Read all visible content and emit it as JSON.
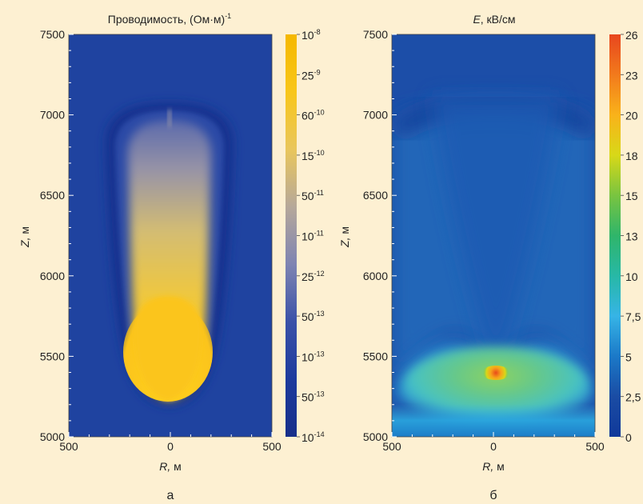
{
  "chart_data": [
    {
      "type": "heatmap",
      "panel_label": "а",
      "title": "Проводимость, (Ом·м)",
      "title_superscript": "-1",
      "xlabel_var": "R,",
      "xlabel_unit": " м",
      "ylabel_var": "Z,",
      "ylabel_unit": " м",
      "xlim": [
        -500,
        500
      ],
      "ylim": [
        5000,
        7500
      ],
      "x_ticks": [
        {
          "value": -500,
          "label": "500"
        },
        {
          "value": 0,
          "label": "0"
        },
        {
          "value": 500,
          "label": "500"
        }
      ],
      "y_ticks": [
        {
          "value": 7500,
          "label": "7500"
        },
        {
          "value": 7000,
          "label": "7000"
        },
        {
          "value": 6500,
          "label": "6500"
        },
        {
          "value": 6000,
          "label": "6000"
        },
        {
          "value": 5500,
          "label": "5500"
        },
        {
          "value": 5000,
          "label": "5000"
        }
      ],
      "colorbar": {
        "colors": [
          "#f5b800",
          "#f8c61a",
          "#e9c65c",
          "#b6a89a",
          "#7e84b2",
          "#3a52a8",
          "#1d3b9d",
          "#172f8a"
        ],
        "labels": [
          {
            "base": "10",
            "exp": "-8"
          },
          {
            "base": "25",
            "exp": "-9"
          },
          {
            "base": "60",
            "exp": "-10"
          },
          {
            "base": "15",
            "exp": "-10"
          },
          {
            "base": "50",
            "exp": "-11"
          },
          {
            "base": "10",
            "exp": "-11"
          },
          {
            "base": "25",
            "exp": "-12"
          },
          {
            "base": "50",
            "exp": "-13"
          },
          {
            "base": "10",
            "exp": "-13"
          },
          {
            "base": "50",
            "exp": "-13"
          },
          {
            "base": "10",
            "exp": "-14"
          }
        ]
      }
    },
    {
      "type": "heatmap",
      "panel_label": "б",
      "title_var": "E",
      "title": ", кВ/см",
      "xlabel_var": "R,",
      "xlabel_unit": " м",
      "ylabel_var": "Z,",
      "ylabel_unit": " м",
      "xlim": [
        -500,
        500
      ],
      "ylim": [
        5000,
        7500
      ],
      "x_ticks": [
        {
          "value": -500,
          "label": "500"
        },
        {
          "value": 0,
          "label": "0"
        },
        {
          "value": 500,
          "label": "500"
        }
      ],
      "y_ticks": [
        {
          "value": 7500,
          "label": "7500"
        },
        {
          "value": 7000,
          "label": "7000"
        },
        {
          "value": 6500,
          "label": "6500"
        },
        {
          "value": 6000,
          "label": "6000"
        },
        {
          "value": 5500,
          "label": "5500"
        },
        {
          "value": 5000,
          "label": "5000"
        }
      ],
      "colorbar": {
        "colors": [
          "#e8461e",
          "#f27a1c",
          "#f9b21a",
          "#d8d818",
          "#79c440",
          "#2fb56a",
          "#27b8a6",
          "#36b4e6",
          "#1b79c8",
          "#1a4ca4",
          "#10399a"
        ],
        "labels": [
          "26",
          "23",
          "20",
          "18",
          "15",
          "13",
          "10",
          "7,5",
          "5",
          "2,5",
          "0"
        ]
      }
    }
  ]
}
